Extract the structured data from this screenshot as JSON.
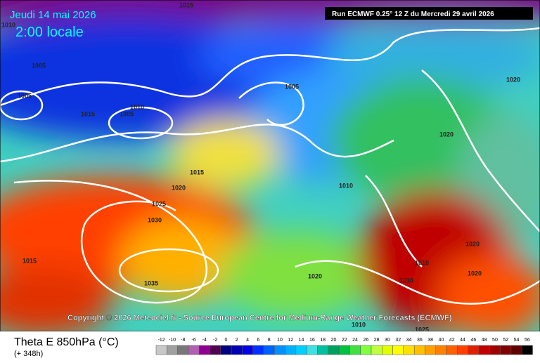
{
  "header": {
    "date": "Jeudi 14 mai 2026",
    "time": "2:00 locale",
    "run": "Run ECMWF 0.25° 12 Z du Mercredi 29 avril 2026"
  },
  "copyright": "Copyright © 2026 Meteociel.fr - Source European Centre for Medium-Range Weather Forecasts (ECMWF)",
  "footer": {
    "parameter": "Theta E 850hPa (°C)",
    "lead": "(+ 348h)"
  },
  "scale": {
    "ticks": [
      -12,
      -10,
      -8,
      -6,
      -4,
      -2,
      0,
      2,
      4,
      6,
      8,
      10,
      12,
      14,
      16,
      18,
      20,
      22,
      24,
      26,
      28,
      30,
      32,
      34,
      36,
      38,
      40,
      42,
      44,
      46,
      48,
      50,
      52,
      54,
      56
    ],
    "colors": [
      "#c8c8c8",
      "#a0a0a0",
      "#787878",
      "#b060b0",
      "#900090",
      "#500050",
      "#000080",
      "#0000b0",
      "#0000e0",
      "#0030ff",
      "#0060ff",
      "#0090ff",
      "#00b0ff",
      "#00d0ff",
      "#40e0e0",
      "#00c0a0",
      "#00a060",
      "#00c040",
      "#40e040",
      "#80ff40",
      "#c0ff40",
      "#e0ff00",
      "#ffff00",
      "#ffe000",
      "#ffc000",
      "#ffa000",
      "#ff8000",
      "#ff6000",
      "#ff4000",
      "#e02000",
      "#c00000",
      "#a00000",
      "#800000",
      "#600000",
      "#000000"
    ]
  },
  "map_labels": [
    "1015",
    "1010",
    "1005",
    "1005",
    "1015",
    "1010",
    "1005",
    "1015",
    "1020",
    "1025",
    "1030",
    "1035",
    "1005",
    "1010",
    "1020",
    "1020",
    "1010",
    "1010",
    "1020",
    "1025",
    "1020",
    "1020",
    "1015",
    "1010"
  ]
}
